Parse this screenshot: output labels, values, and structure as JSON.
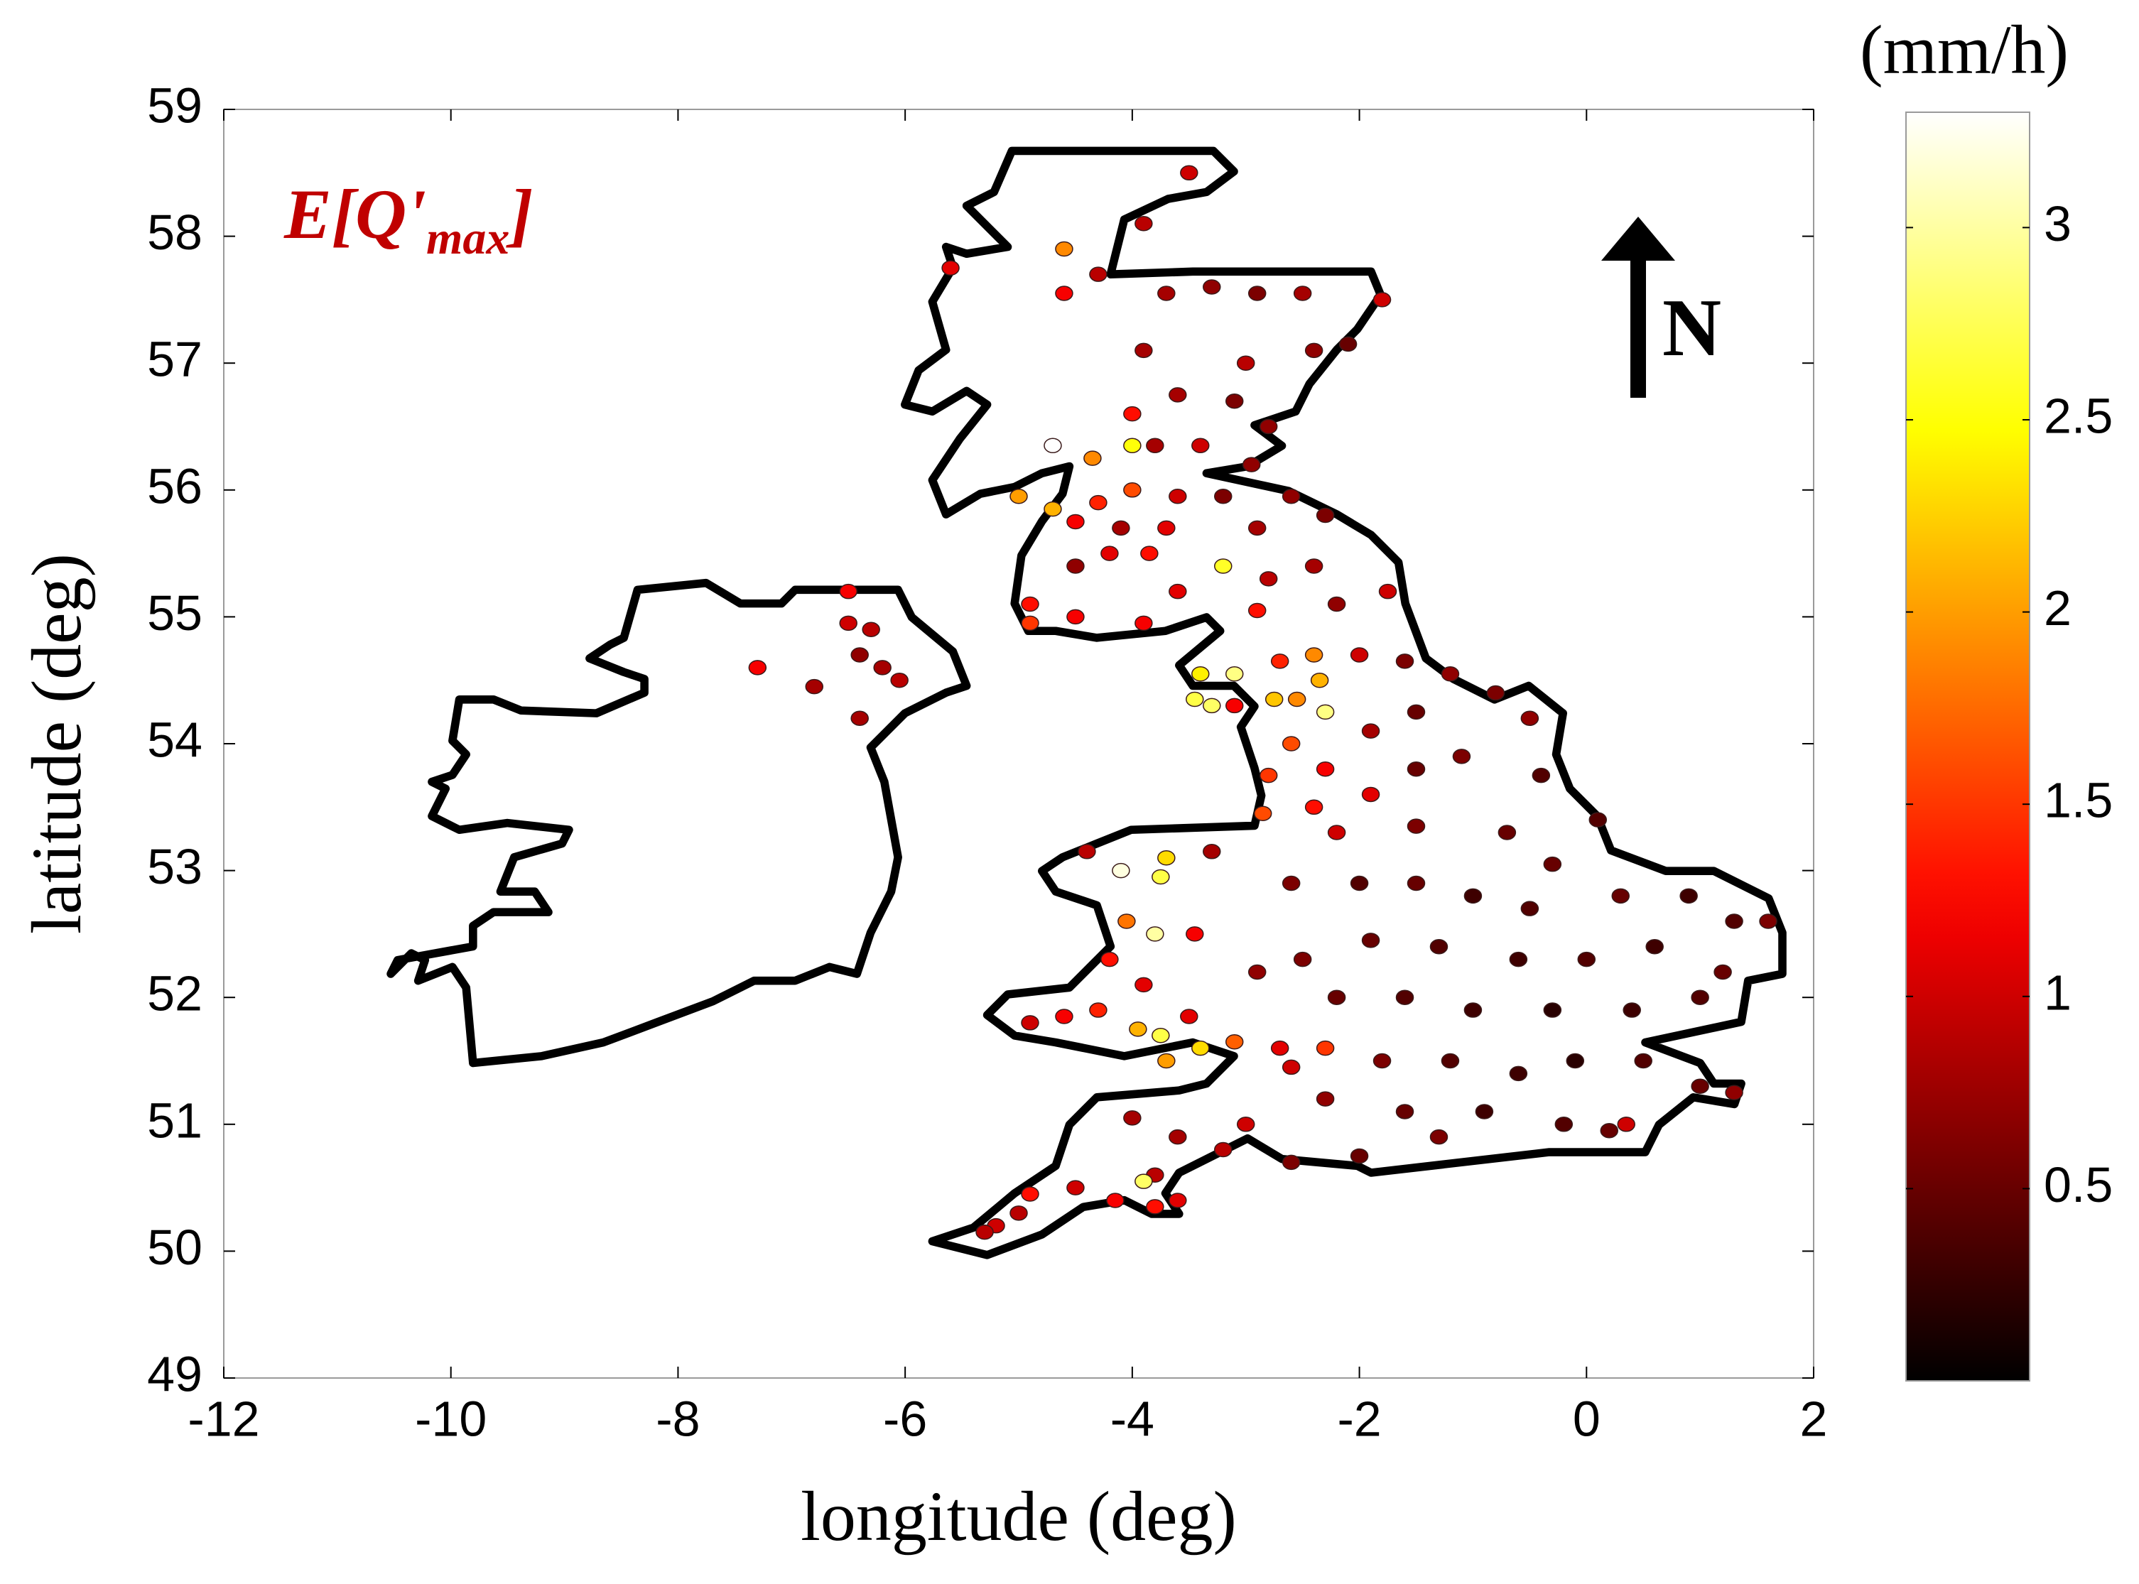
{
  "chart_data": {
    "type": "scatter",
    "xlabel": "longitude (deg)",
    "ylabel": "latitude (deg)",
    "annotation": [
      "E[Q'",
      "max",
      "]"
    ],
    "north_label": "N",
    "colorbar_label": "(mm/h)",
    "colormap": "hot",
    "clim": [
      0,
      3.3
    ],
    "cticks": [
      0.5,
      1,
      1.5,
      2,
      2.5,
      3
    ],
    "xlim": [
      -12,
      2
    ],
    "xticks": [
      -12,
      -10,
      -8,
      -6,
      -4,
      -2,
      0,
      2
    ],
    "ylim": [
      49,
      59
    ],
    "yticks": [
      49,
      50,
      51,
      52,
      53,
      54,
      55,
      56,
      57,
      58,
      59
    ],
    "x": [
      -3.5,
      -3.9,
      -5.6,
      -4.6,
      -4.6,
      -4.3,
      -3.7,
      -3.3,
      -2.9,
      -2.5,
      -1.8,
      -3.9,
      -3.0,
      -2.4,
      -2.1,
      -3.6,
      -3.1,
      -4.0,
      -2.8,
      -3.4,
      -3.8,
      -2.95,
      -4.0,
      -4.35,
      -4.7,
      -5.0,
      -4.7,
      -4.3,
      -4.0,
      -3.6,
      -3.2,
      -2.6,
      -2.3,
      -4.5,
      -4.1,
      -3.7,
      -2.9,
      -4.5,
      -4.2,
      -3.85,
      -3.2,
      -3.6,
      -2.8,
      -2.4,
      -4.9,
      -4.9,
      -4.5,
      -3.9,
      -2.9,
      -2.2,
      -1.75,
      -6.5,
      -6.5,
      -6.3,
      -6.4,
      -7.3,
      -6.8,
      -6.05,
      -6.4,
      -6.2,
      -3.4,
      -3.1,
      -3.45,
      -3.1,
      -3.3,
      -2.75,
      -2.55,
      -2.3,
      -2.7,
      -2.4,
      -2.35,
      -2.0,
      -1.6,
      -1.2,
      -0.8,
      -0.5,
      -1.5,
      -1.9,
      -2.6,
      -2.3,
      -1.9,
      -1.5,
      -1.1,
      -0.4,
      -2.8,
      -2.85,
      -2.4,
      -2.2,
      -1.5,
      -0.7,
      0.1,
      -0.3,
      -4.1,
      -3.7,
      -3.75,
      -4.4,
      -3.3,
      -3.8,
      -4.05,
      -4.2,
      -3.45,
      -3.9,
      -4.6,
      -4.3,
      -3.5,
      -3.95,
      -3.75,
      -3.4,
      -3.7,
      -3.1,
      -4.9,
      -2.6,
      -2.0,
      -1.5,
      -1.0,
      -0.5,
      0.3,
      0.9,
      1.3,
      1.6,
      0.6,
      0.0,
      -0.6,
      -1.3,
      -1.9,
      -2.5,
      -2.9,
      -2.2,
      -1.6,
      -1.0,
      -0.3,
      0.4,
      1.0,
      1.2,
      -0.1,
      0.5,
      1.0,
      1.3,
      -0.6,
      -1.2,
      -1.8,
      -2.6,
      -2.3,
      -1.6,
      -0.9,
      -0.2,
      0.2,
      0.35,
      -1.3,
      -2.0,
      -2.6,
      -3.2,
      -3.6,
      -3.0,
      -2.3,
      -2.7,
      -4.0,
      -3.8,
      -4.15,
      -3.9,
      -4.5,
      -4.9,
      -5.0,
      -5.2,
      -5.3,
      -3.6,
      -3.8
    ],
    "y": [
      58.5,
      58.1,
      57.75,
      57.9,
      57.55,
      57.7,
      57.55,
      57.6,
      57.55,
      57.55,
      57.5,
      57.1,
      57.0,
      57.1,
      57.15,
      56.75,
      56.7,
      56.6,
      56.5,
      56.35,
      56.35,
      56.2,
      56.35,
      56.25,
      56.35,
      55.95,
      55.85,
      55.9,
      56.0,
      55.95,
      55.95,
      55.95,
      55.8,
      55.75,
      55.7,
      55.7,
      55.7,
      55.4,
      55.5,
      55.5,
      55.4,
      55.2,
      55.3,
      55.4,
      55.1,
      54.95,
      55.0,
      54.95,
      55.05,
      55.1,
      55.2,
      55.2,
      54.95,
      54.9,
      54.7,
      54.6,
      54.45,
      54.5,
      54.2,
      54.6,
      54.55,
      54.55,
      54.35,
      54.3,
      54.3,
      54.35,
      54.35,
      54.25,
      54.65,
      54.7,
      54.5,
      54.7,
      54.65,
      54.55,
      54.4,
      54.2,
      54.25,
      54.1,
      54.0,
      53.8,
      53.6,
      53.8,
      53.9,
      53.75,
      53.75,
      53.45,
      53.5,
      53.3,
      53.35,
      53.3,
      53.4,
      53.05,
      53.0,
      53.1,
      52.95,
      53.15,
      53.15,
      52.5,
      52.6,
      52.3,
      52.5,
      52.1,
      51.85,
      51.9,
      51.85,
      51.75,
      51.7,
      51.6,
      51.5,
      51.65,
      51.8,
      52.9,
      52.9,
      52.9,
      52.8,
      52.7,
      52.8,
      52.8,
      52.6,
      52.6,
      52.4,
      52.3,
      52.3,
      52.4,
      52.45,
      52.3,
      52.2,
      52.0,
      52.0,
      51.9,
      51.9,
      51.9,
      52.0,
      52.2,
      51.5,
      51.5,
      51.3,
      51.25,
      51.4,
      51.5,
      51.5,
      51.45,
      51.2,
      51.1,
      51.1,
      51.0,
      50.95,
      51.0,
      50.9,
      50.75,
      50.7,
      50.8,
      50.9,
      51.0,
      51.6,
      51.6,
      51.05,
      50.6,
      50.4,
      50.55,
      50.5,
      50.45,
      50.3,
      50.2,
      50.15,
      50.4,
      50.35
    ],
    "values": [
      1.0,
      0.9,
      1.1,
      1.9,
      1.2,
      0.9,
      0.8,
      0.7,
      0.6,
      0.8,
      1.0,
      0.8,
      0.9,
      0.7,
      0.5,
      0.8,
      0.6,
      1.3,
      0.7,
      1.0,
      0.8,
      0.7,
      2.5,
      1.9,
      3.3,
      2.0,
      2.1,
      1.4,
      1.6,
      1.0,
      0.6,
      0.7,
      0.6,
      1.2,
      0.8,
      1.1,
      0.8,
      0.7,
      1.1,
      1.3,
      2.6,
      1.1,
      0.9,
      0.8,
      1.3,
      1.5,
      1.2,
      1.2,
      1.3,
      0.7,
      1.0,
      1.2,
      1.0,
      0.9,
      0.7,
      1.2,
      0.8,
      0.9,
      0.8,
      0.8,
      2.4,
      2.9,
      2.7,
      1.2,
      2.8,
      2.2,
      1.9,
      2.9,
      1.4,
      1.9,
      2.1,
      1.0,
      0.6,
      0.7,
      0.6,
      0.7,
      0.5,
      0.8,
      1.6,
      1.2,
      1.1,
      0.5,
      0.6,
      0.4,
      1.5,
      1.6,
      1.3,
      1.0,
      0.6,
      0.5,
      0.4,
      0.5,
      3.2,
      2.3,
      2.7,
      0.9,
      0.8,
      3.0,
      1.8,
      1.3,
      1.2,
      1.1,
      1.2,
      1.4,
      1.1,
      2.1,
      2.7,
      2.3,
      2.0,
      1.7,
      1.0,
      0.6,
      0.4,
      0.5,
      0.3,
      0.4,
      0.5,
      0.3,
      0.4,
      0.6,
      0.3,
      0.4,
      0.3,
      0.4,
      0.5,
      0.6,
      0.7,
      0.5,
      0.4,
      0.3,
      0.2,
      0.3,
      0.4,
      0.5,
      0.2,
      0.4,
      0.5,
      0.7,
      0.3,
      0.4,
      0.6,
      1.0,
      0.7,
      0.5,
      0.3,
      0.4,
      0.5,
      1.0,
      0.6,
      0.5,
      0.6,
      0.9,
      0.8,
      1.0,
      1.5,
      1.1,
      0.8,
      0.9,
      1.2,
      2.8,
      1.0,
      1.3,
      0.9,
      1.0,
      0.9,
      1.1,
      1.3
    ]
  }
}
